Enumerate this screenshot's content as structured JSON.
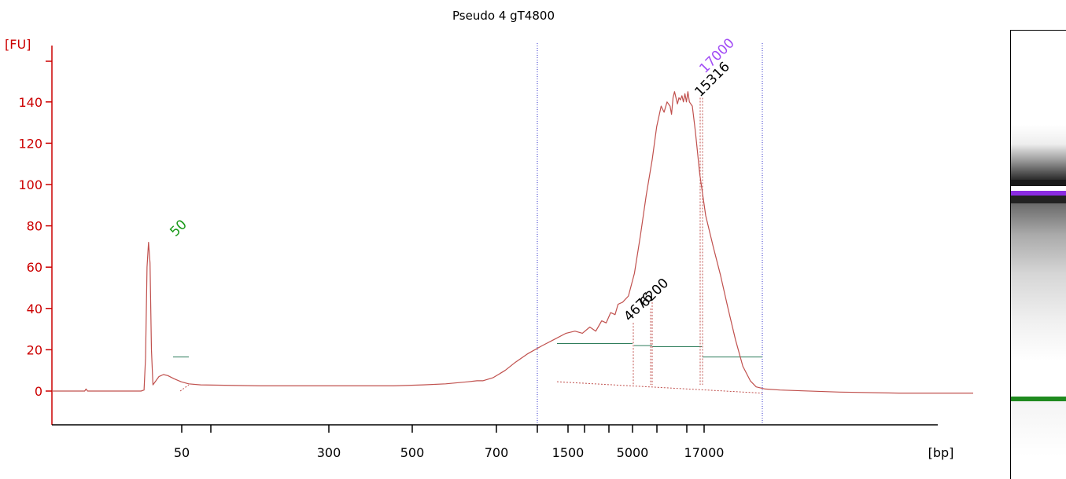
{
  "chart_data": {
    "type": "line",
    "title": "Pseudo 4 gT4800",
    "ylabel": "[FU]",
    "xlabel": "[bp]",
    "ylim": [
      -17,
      167
    ],
    "y_ticks": [
      0,
      20,
      40,
      60,
      80,
      100,
      120,
      140
    ],
    "x_tick_labels": [
      "50",
      "300",
      "500",
      "700",
      "1500",
      "5000",
      "17000"
    ],
    "region_markers": [
      "1000",
      "35000"
    ],
    "grid": false,
    "colors": {
      "axis": "#cc0000",
      "trace": "#c0504d",
      "marker": "#3333cc",
      "baseline": "#2e7d5b",
      "peak_label_marker": "#2ca02c",
      "peak_label_ladder": "#9b30ff",
      "peak_label_sample": "#000000"
    },
    "peaks": [
      {
        "label": "50",
        "size_bp": 50,
        "height_fu": 72,
        "color": "#1a9a1a"
      },
      {
        "label": "4676",
        "size_bp": 4676,
        "height_fu": 33,
        "color": "#000000"
      },
      {
        "label": "6200",
        "size_bp": 6200,
        "height_fu": 42,
        "color": "#000000"
      },
      {
        "label": "15316",
        "size_bp": 15316,
        "height_fu": 143,
        "color": "#000000"
      },
      {
        "label": "17000",
        "size_bp": 17000,
        "height_fu": 146,
        "color": "#a24cf5"
      }
    ],
    "trace": [
      [
        0,
        0
      ],
      [
        22,
        0
      ],
      [
        23,
        1
      ],
      [
        24,
        0
      ],
      [
        60,
        0
      ],
      [
        62,
        0.5
      ],
      [
        63,
        16
      ],
      [
        64,
        60
      ],
      [
        65,
        72
      ],
      [
        66,
        62
      ],
      [
        67,
        20
      ],
      [
        68,
        3
      ],
      [
        70,
        5
      ],
      [
        72,
        7
      ],
      [
        75,
        8
      ],
      [
        78,
        7.5
      ],
      [
        82,
        6
      ],
      [
        87,
        4.5
      ],
      [
        92,
        3.5
      ],
      [
        100,
        3
      ],
      [
        140,
        2.5
      ],
      [
        200,
        2.5
      ],
      [
        230,
        2.5
      ],
      [
        250,
        3
      ],
      [
        265,
        3.5
      ],
      [
        280,
        4.5
      ],
      [
        286,
        5
      ],
      [
        290,
        5
      ],
      [
        297,
        6.5
      ],
      [
        305,
        10
      ],
      [
        312,
        14
      ],
      [
        320,
        18
      ],
      [
        330,
        22
      ],
      [
        338,
        25
      ],
      [
        346,
        28
      ],
      [
        352,
        29
      ],
      [
        357,
        28
      ],
      [
        362,
        31
      ],
      [
        366,
        29
      ],
      [
        370,
        34
      ],
      [
        373,
        33
      ],
      [
        376,
        38
      ],
      [
        379,
        37
      ],
      [
        381,
        42
      ],
      [
        384,
        43
      ],
      [
        388,
        46
      ],
      [
        392,
        57
      ],
      [
        396,
        75
      ],
      [
        400,
        95
      ],
      [
        404,
        112
      ],
      [
        407,
        128
      ],
      [
        410,
        138
      ],
      [
        412,
        135
      ],
      [
        414,
        140
      ],
      [
        416,
        138
      ],
      [
        417,
        134
      ],
      [
        418,
        142
      ],
      [
        419,
        145
      ],
      [
        421,
        139
      ],
      [
        422,
        142
      ],
      [
        423,
        141
      ],
      [
        424,
        143
      ],
      [
        425,
        140
      ],
      [
        426,
        144
      ],
      [
        427,
        140
      ],
      [
        428,
        145
      ],
      [
        429,
        140
      ],
      [
        431,
        138
      ],
      [
        433,
        126
      ],
      [
        436,
        105
      ],
      [
        440,
        85
      ],
      [
        445,
        70
      ],
      [
        450,
        56
      ],
      [
        455,
        40
      ],
      [
        460,
        25
      ],
      [
        465,
        12
      ],
      [
        470,
        5
      ],
      [
        474,
        2
      ],
      [
        480,
        1
      ],
      [
        490,
        0.5
      ],
      [
        530,
        -0.5
      ],
      [
        570,
        -1
      ],
      [
        620,
        -1
      ]
    ]
  }
}
